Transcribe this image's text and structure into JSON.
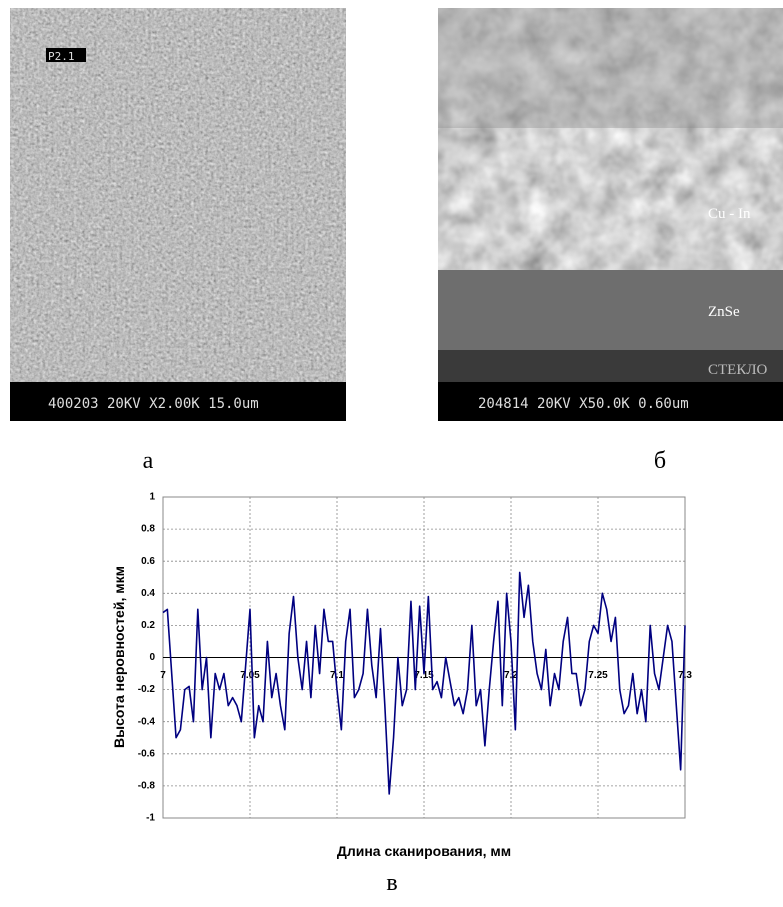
{
  "panels": [
    {
      "tag": "P2.1",
      "footer": "400203 20KV X2.00K 15.0um",
      "caption": "а"
    },
    {
      "labels": [
        "Cu - In",
        "ZnSe",
        "СТЕКЛО"
      ],
      "footer": "204814 20KV X50.0K 0.60um",
      "caption": "б"
    }
  ],
  "chart_data": {
    "type": "line",
    "xlabel": "Длина сканирования, мм",
    "ylabel": "Высота неровностей, мкм",
    "color": "#000080",
    "grid": true,
    "xlim": [
      7,
      7.3
    ],
    "xticks": [
      7,
      7.05,
      7.1,
      7.15,
      7.2,
      7.25,
      7.3
    ],
    "ylim": [
      -1,
      1
    ],
    "yticks": [
      -1,
      -0.8,
      -0.6,
      -0.4,
      -0.2,
      0,
      0.2,
      0.4,
      0.6,
      0.8,
      1
    ],
    "x": [
      7,
      7.0025,
      7.005,
      7.0075,
      7.01,
      7.0125,
      7.015,
      7.0175,
      7.02,
      7.0225,
      7.025,
      7.0275,
      7.03,
      7.0325,
      7.035,
      7.0375,
      7.04,
      7.0425,
      7.045,
      7.0475,
      7.05,
      7.0525,
      7.055,
      7.0575,
      7.06,
      7.0625,
      7.065,
      7.0675,
      7.07,
      7.0725,
      7.075,
      7.0775,
      7.08,
      7.0825,
      7.085,
      7.0875,
      7.09,
      7.0925,
      7.095,
      7.0975,
      7.1,
      7.1025,
      7.105,
      7.1075,
      7.11,
      7.1125,
      7.115,
      7.1175,
      7.12,
      7.1225,
      7.125,
      7.1275,
      7.13,
      7.1325,
      7.135,
      7.1375,
      7.14,
      7.1425,
      7.145,
      7.1475,
      7.15,
      7.1525,
      7.155,
      7.1575,
      7.16,
      7.1625,
      7.165,
      7.1675,
      7.17,
      7.1725,
      7.175,
      7.1775,
      7.18,
      7.1825,
      7.185,
      7.1875,
      7.19,
      7.1925,
      7.195,
      7.1975,
      7.2,
      7.2025,
      7.205,
      7.2075,
      7.21,
      7.2125,
      7.215,
      7.2175,
      7.22,
      7.2225,
      7.225,
      7.2275,
      7.23,
      7.2325,
      7.235,
      7.2375,
      7.24,
      7.2425,
      7.245,
      7.2475,
      7.25,
      7.2525,
      7.255,
      7.2575,
      7.26,
      7.2625,
      7.265,
      7.2675,
      7.27,
      7.2725,
      7.275,
      7.2775,
      7.28,
      7.2825,
      7.285,
      7.2875,
      7.29,
      7.2925,
      7.295,
      7.2975,
      7.3
    ],
    "values": [
      0.28,
      0.3,
      -0.1,
      -0.5,
      -0.45,
      -0.2,
      -0.18,
      -0.4,
      0.3,
      -0.2,
      0,
      -0.5,
      -0.1,
      -0.2,
      -0.1,
      -0.3,
      -0.25,
      -0.3,
      -0.4,
      -0.05,
      0.3,
      -0.5,
      -0.3,
      -0.4,
      0.1,
      -0.25,
      -0.1,
      -0.3,
      -0.45,
      0.15,
      0.38,
      0,
      -0.2,
      0.1,
      -0.25,
      0.2,
      -0.1,
      0.3,
      0.1,
      0.1,
      -0.2,
      -0.45,
      0.1,
      0.3,
      -0.25,
      -0.2,
      -0.1,
      0.3,
      -0.05,
      -0.25,
      0.18,
      -0.3,
      -0.85,
      -0.5,
      0,
      -0.3,
      -0.2,
      0.35,
      -0.2,
      0.32,
      -0.1,
      0.38,
      -0.2,
      -0.15,
      -0.25,
      0,
      -0.15,
      -0.3,
      -0.25,
      -0.35,
      -0.2,
      0.2,
      -0.3,
      -0.2,
      -0.55,
      -0.2,
      0.1,
      0.35,
      -0.3,
      0.4,
      0.1,
      -0.45,
      0.53,
      0.25,
      0.45,
      0.1,
      -0.1,
      -0.2,
      0.05,
      -0.3,
      -0.1,
      -0.2,
      0.1,
      0.25,
      -0.1,
      -0.1,
      -0.3,
      -0.2,
      0.1,
      0.2,
      0.15,
      0.4,
      0.3,
      0.1,
      0.25,
      -0.2,
      -0.35,
      -0.3,
      -0.1,
      -0.35,
      -0.2,
      -0.4,
      0.2,
      -0.1,
      -0.2,
      0,
      0.2,
      0.1,
      -0.3,
      -0.7,
      0.2
    ]
  },
  "caption": "в"
}
